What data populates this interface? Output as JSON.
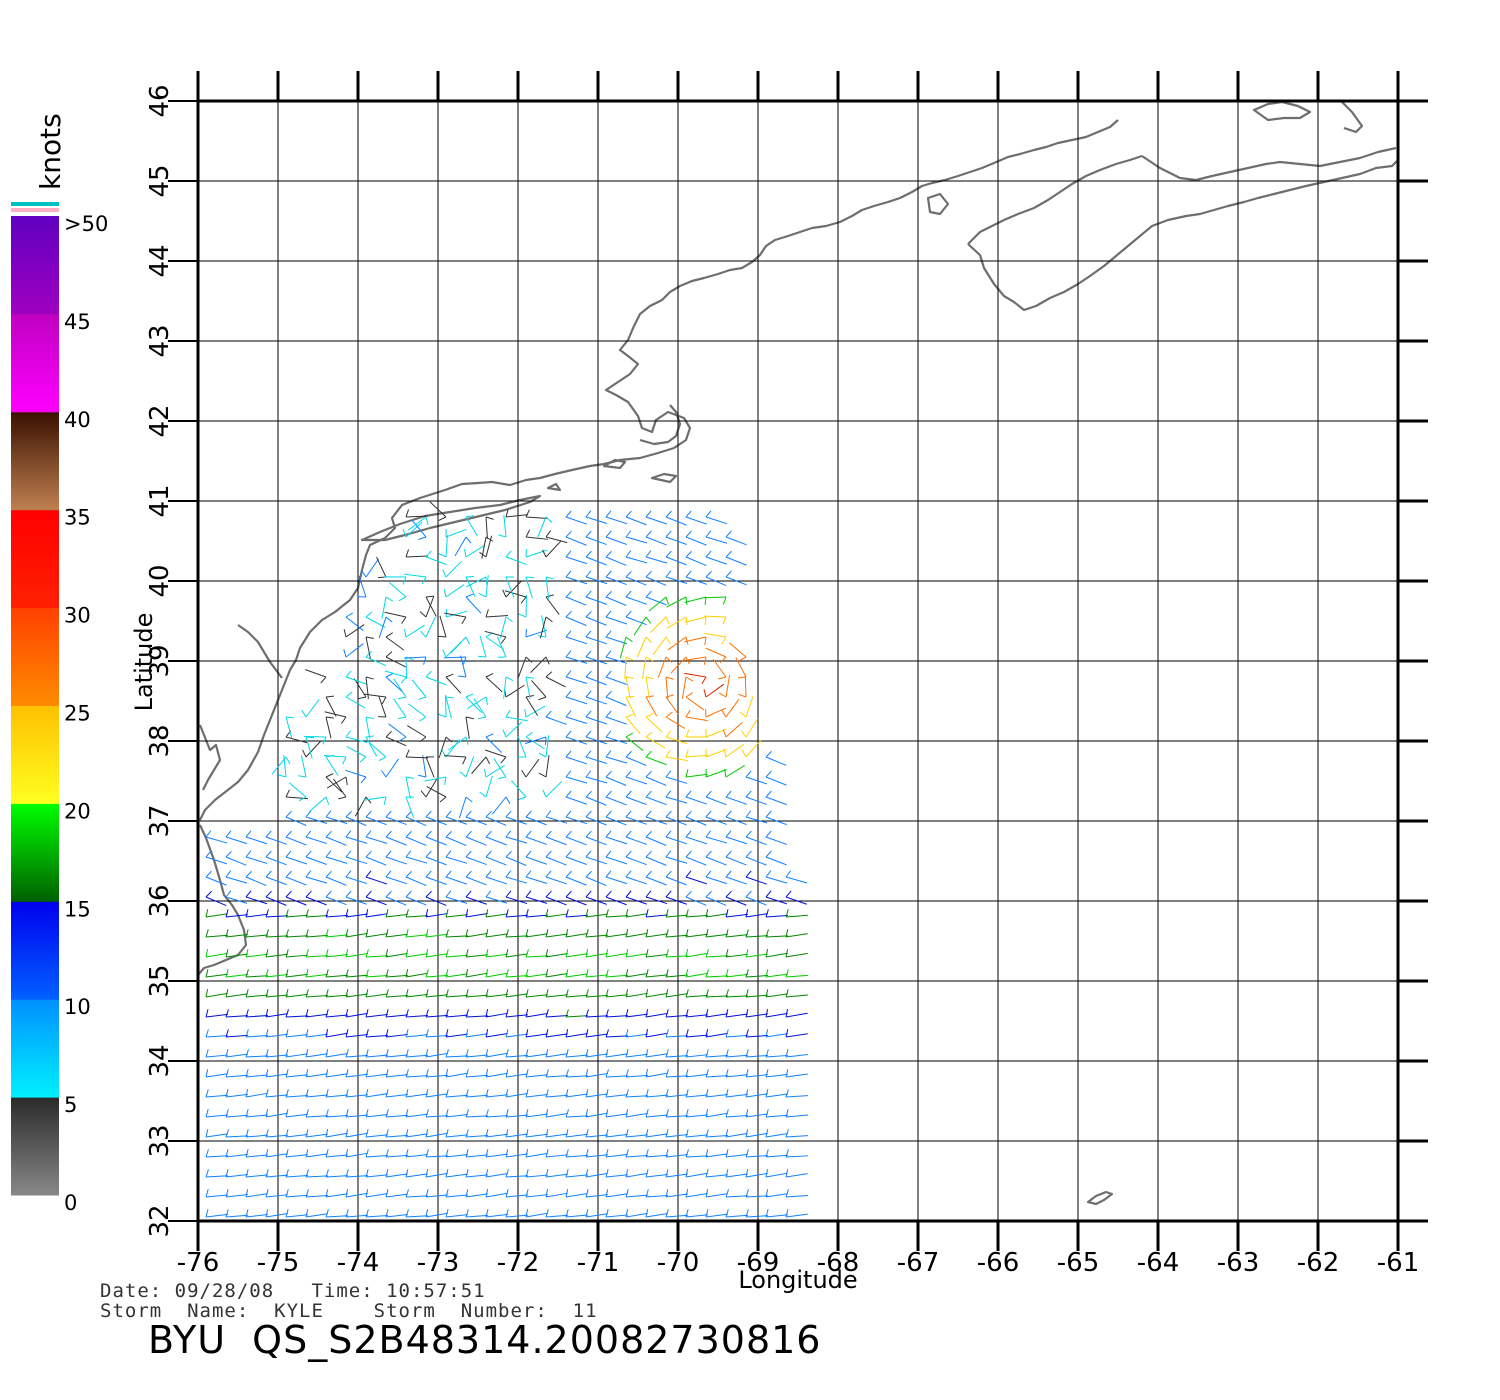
{
  "map": {
    "title_id": "BYU  QS_S2B48314.20082730816",
    "date_line": "Date: 09/28/08   Time: 10:57:51",
    "storm_line": "Storm  Name:  KYLE    Storm  Number:  11",
    "xlabel": "Longitude",
    "ylabel": "Latitude",
    "lon_range": [
      -76,
      -61
    ],
    "lat_range": [
      32,
      46
    ],
    "lon_ticks": [
      "-76",
      "-75",
      "-74",
      "-73",
      "-72",
      "-71",
      "-70",
      "-69",
      "-68",
      "-67",
      "-66",
      "-65",
      "-64",
      "-63",
      "-62",
      "-61"
    ],
    "lat_ticks": [
      "32",
      "33",
      "34",
      "35",
      "36",
      "37",
      "38",
      "39",
      "40",
      "41",
      "42",
      "43",
      "44",
      "45",
      "46"
    ],
    "grid": true,
    "swath_extent": "lon -76 to -68.5, lat 32 to 41"
  },
  "colorbar": {
    "unit": "knots",
    "labels": [
      ">50",
      "45",
      "40",
      "35",
      "30",
      "25",
      "20",
      "15",
      "10",
      "5",
      "0"
    ],
    "segments": [
      {
        "from": 0,
        "to": 5,
        "colors": [
          "#888888",
          "#2a2a2a"
        ]
      },
      {
        "from": 5,
        "to": 10,
        "colors": [
          "#00f0ff",
          "#0090ff"
        ]
      },
      {
        "from": 10,
        "to": 15,
        "colors": [
          "#0060ff",
          "#0000ee"
        ]
      },
      {
        "from": 15,
        "to": 20,
        "colors": [
          "#006000",
          "#00ff00"
        ]
      },
      {
        "from": 20,
        "to": 25,
        "colors": [
          "#ffff20",
          "#ffc000"
        ]
      },
      {
        "from": 25,
        "to": 30,
        "colors": [
          "#ff8c00",
          "#ff4000"
        ]
      },
      {
        "from": 30,
        "to": 35,
        "colors": [
          "#ff2000",
          "#ff0000"
        ]
      },
      {
        "from": 35,
        "to": 40,
        "colors": [
          "#c08050",
          "#3a1000"
        ]
      },
      {
        "from": 40,
        "to": 45,
        "colors": [
          "#ff00ff",
          "#c000c0"
        ]
      },
      {
        "from": 45,
        "to": 50,
        "colors": [
          "#a000c0",
          "#6000c0"
        ]
      }
    ],
    "over_colors": [
      "#ffb0c0",
      "#00c0c0"
    ]
  },
  "colors": {
    "coast": "#6e6e6e",
    "grid": "#000000"
  }
}
